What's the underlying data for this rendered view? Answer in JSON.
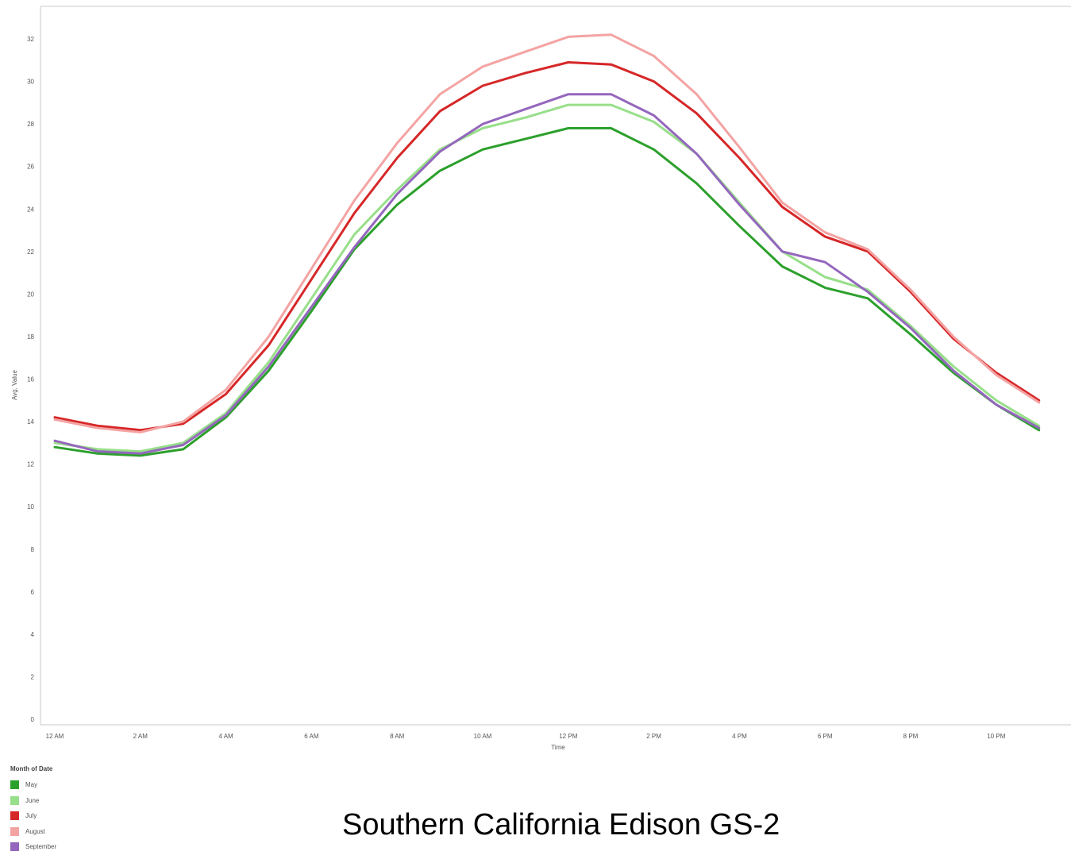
{
  "chart_data": {
    "type": "line",
    "title": "",
    "caption": "Southern California Edison GS-2",
    "xlabel": "Time",
    "ylabel": "Avg. Value",
    "ylim": [
      0,
      33.5
    ],
    "yticks": [
      0,
      2,
      4,
      6,
      8,
      10,
      12,
      14,
      16,
      18,
      20,
      22,
      24,
      26,
      28,
      30,
      32
    ],
    "xlim": [
      -0.3,
      24
    ],
    "xticks": [
      {
        "x": 0,
        "label": "12 AM"
      },
      {
        "x": 2,
        "label": "2 AM"
      },
      {
        "x": 4,
        "label": "4 AM"
      },
      {
        "x": 6,
        "label": "6 AM"
      },
      {
        "x": 8,
        "label": "8 AM"
      },
      {
        "x": 10,
        "label": "10 AM"
      },
      {
        "x": 12,
        "label": "12 PM"
      },
      {
        "x": 14,
        "label": "2 PM"
      },
      {
        "x": 16,
        "label": "4 PM"
      },
      {
        "x": 18,
        "label": "6 PM"
      },
      {
        "x": 20,
        "label": "8 PM"
      },
      {
        "x": 22,
        "label": "10 PM"
      },
      {
        "x": 24,
        "label": "12 AM"
      }
    ],
    "x": [
      0,
      1,
      2,
      3,
      4,
      5,
      6,
      7,
      8,
      9,
      10,
      11,
      12,
      13,
      14,
      15,
      16,
      17,
      18,
      19,
      20,
      21,
      22,
      23
    ],
    "grid": false,
    "legend_title": "Month of Date",
    "legend_position": "bottom-left",
    "series": [
      {
        "name": "May",
        "color": "#2ca02c",
        "values": [
          12.8,
          12.5,
          12.4,
          12.7,
          14.2,
          16.4,
          19.2,
          22.1,
          24.2,
          25.8,
          26.8,
          27.3,
          27.8,
          27.8,
          26.8,
          25.2,
          23.2,
          21.3,
          20.3,
          19.8,
          18.1,
          16.3,
          14.8,
          13.6
        ]
      },
      {
        "name": "June",
        "color": "#98df8a",
        "values": [
          13.0,
          12.7,
          12.6,
          13.0,
          14.4,
          16.8,
          19.8,
          22.8,
          24.9,
          26.8,
          27.8,
          28.3,
          28.9,
          28.9,
          28.1,
          26.6,
          24.3,
          22.0,
          20.8,
          20.2,
          18.5,
          16.6,
          15.0,
          13.8
        ]
      },
      {
        "name": "July",
        "color": "#d62728",
        "values": [
          14.2,
          13.8,
          13.6,
          13.9,
          15.3,
          17.6,
          20.7,
          23.8,
          26.4,
          28.6,
          29.8,
          30.4,
          30.9,
          30.8,
          30.0,
          28.5,
          26.4,
          24.1,
          22.7,
          22.0,
          20.1,
          17.9,
          16.3,
          15.0
        ]
      },
      {
        "name": "August",
        "color": "#f4a3a3",
        "values": [
          14.1,
          13.7,
          13.5,
          14.0,
          15.5,
          18.0,
          21.2,
          24.4,
          27.1,
          29.4,
          30.7,
          31.4,
          32.1,
          32.2,
          31.2,
          29.4,
          26.9,
          24.3,
          22.9,
          22.1,
          20.2,
          18.0,
          16.2,
          14.9
        ]
      },
      {
        "name": "September",
        "color": "#9467bd",
        "values": [
          13.1,
          12.6,
          12.5,
          12.9,
          14.3,
          16.6,
          19.4,
          22.2,
          24.7,
          26.7,
          28.0,
          28.7,
          29.4,
          29.4,
          28.4,
          26.6,
          24.2,
          22.0,
          21.5,
          20.1,
          18.4,
          16.4,
          14.8,
          13.7
        ]
      }
    ]
  }
}
